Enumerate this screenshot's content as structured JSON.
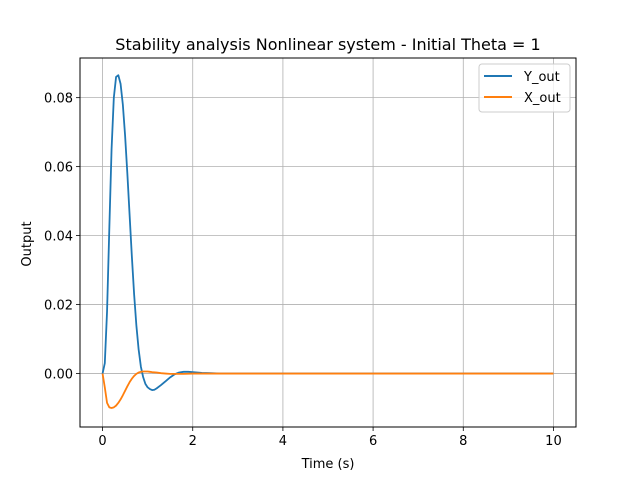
{
  "chart_data": {
    "type": "line",
    "title": "Stability analysis Nonlinear system - Initial Theta = 1",
    "xlabel": "Time (s)",
    "ylabel": "Output",
    "xlim": [
      -0.5,
      10.5
    ],
    "ylim": [
      -0.0155,
      0.0915
    ],
    "x_ticks": [
      0,
      2,
      4,
      6,
      8,
      10
    ],
    "y_ticks": [
      0.0,
      0.02,
      0.04,
      0.06,
      0.08
    ],
    "x_tick_labels": [
      "0",
      "2",
      "4",
      "6",
      "8",
      "10"
    ],
    "y_tick_labels": [
      "0.00",
      "0.02",
      "0.04",
      "0.06",
      "0.08"
    ],
    "grid": true,
    "legend_position": "upper right",
    "series": [
      {
        "name": "Y_out",
        "color": "#1f77b4",
        "x": [
          0,
          0.05,
          0.1,
          0.15,
          0.2,
          0.25,
          0.3,
          0.35,
          0.4,
          0.45,
          0.5,
          0.55,
          0.6,
          0.65,
          0.7,
          0.75,
          0.8,
          0.85,
          0.9,
          0.95,
          1.0,
          1.05,
          1.1,
          1.15,
          1.2,
          1.3,
          1.4,
          1.5,
          1.6,
          1.7,
          1.8,
          1.9,
          2.0,
          2.1,
          2.2,
          2.4,
          2.6,
          3.0,
          4.0,
          6.0,
          8.0,
          10.0
        ],
        "y": [
          0.0,
          0.003,
          0.018,
          0.042,
          0.065,
          0.08,
          0.086,
          0.0865,
          0.084,
          0.078,
          0.069,
          0.058,
          0.046,
          0.034,
          0.023,
          0.014,
          0.007,
          0.002,
          -0.001,
          -0.003,
          -0.004,
          -0.0045,
          -0.0048,
          -0.0047,
          -0.0043,
          -0.0033,
          -0.0022,
          -0.0011,
          -0.0002,
          0.0003,
          0.0005,
          0.0005,
          0.0004,
          0.0003,
          0.0002,
          0.0001,
          0.0,
          0.0,
          0.0,
          0.0,
          0.0,
          0.0
        ]
      },
      {
        "name": "X_out",
        "color": "#ff7f0e",
        "x": [
          0,
          0.05,
          0.1,
          0.15,
          0.2,
          0.25,
          0.3,
          0.35,
          0.4,
          0.45,
          0.5,
          0.55,
          0.6,
          0.65,
          0.7,
          0.75,
          0.8,
          0.85,
          0.9,
          0.95,
          1.0,
          1.05,
          1.1,
          1.2,
          1.3,
          1.4,
          1.5,
          1.6,
          1.7,
          1.8,
          2.0,
          2.2,
          2.5,
          3.0,
          4.0,
          6.0,
          8.0,
          10.0
        ],
        "y": [
          0.0,
          -0.004,
          -0.0085,
          -0.0098,
          -0.01,
          -0.0098,
          -0.0093,
          -0.0085,
          -0.0075,
          -0.0063,
          -0.005,
          -0.0037,
          -0.0025,
          -0.0015,
          -0.0007,
          -0.0001,
          0.0003,
          0.0005,
          0.0006,
          0.0006,
          0.0006,
          0.0005,
          0.0004,
          0.0003,
          0.0001,
          0.0,
          -0.0001,
          -0.0001,
          -0.0001,
          -0.0001,
          0.0,
          0.0,
          0.0,
          0.0,
          0.0,
          0.0,
          0.0,
          0.0
        ]
      }
    ]
  }
}
